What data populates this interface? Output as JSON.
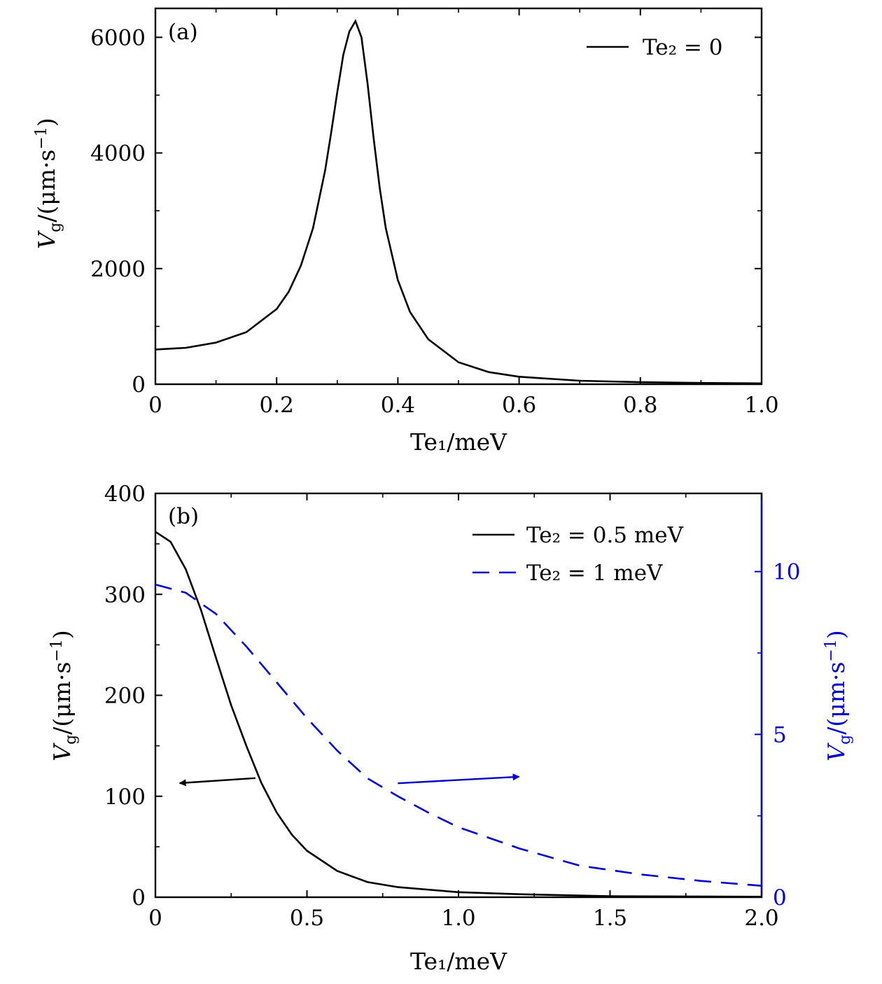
{
  "colors": {
    "black": "#000000",
    "blue": "#0000cc",
    "right_axis": "#0000cc"
  },
  "chart_data": [
    {
      "type": "line",
      "panel_label": "(a)",
      "xlabel": "Te₁/meV",
      "ylabel": "Vg/(μm·s⁻¹)",
      "ylabel_parts": {
        "var": "V",
        "sub": "g",
        "unit": "/(μm·s",
        "sup": "−1",
        "close": ")"
      },
      "xlim": [
        0,
        1.0
      ],
      "ylim": [
        0,
        6500
      ],
      "xticks": [
        0,
        0.2,
        0.4,
        0.6,
        0.8,
        1.0
      ],
      "xtick_labels": [
        "0",
        "0.2",
        "0.4",
        "0.6",
        "0.8",
        "1.0"
      ],
      "yticks": [
        0,
        2000,
        4000,
        6000
      ],
      "ytick_labels": [
        "0",
        "2000",
        "4000",
        "6000"
      ],
      "legend_position": "top-right",
      "series": [
        {
          "name": "Te₂ = 0",
          "color": "#000000",
          "dash": "solid",
          "x": [
            0,
            0.05,
            0.1,
            0.15,
            0.2,
            0.22,
            0.24,
            0.26,
            0.28,
            0.29,
            0.3,
            0.31,
            0.32,
            0.33,
            0.34,
            0.35,
            0.36,
            0.37,
            0.38,
            0.4,
            0.42,
            0.45,
            0.5,
            0.55,
            0.6,
            0.7,
            0.8,
            0.9,
            1.0
          ],
          "y": [
            600,
            630,
            720,
            900,
            1300,
            1600,
            2050,
            2700,
            3700,
            4350,
            5050,
            5700,
            6100,
            6280,
            6000,
            5200,
            4250,
            3400,
            2700,
            1800,
            1250,
            780,
            380,
            210,
            130,
            60,
            35,
            22,
            15
          ]
        }
      ]
    },
    {
      "type": "line",
      "panel_label": "(b)",
      "xlabel": "Te₁/meV",
      "ylabel": "Vg/(μm·s⁻¹)",
      "ylabel_parts": {
        "var": "V",
        "sub": "g",
        "unit": "/(μm·s",
        "sup": "−1",
        "close": ")"
      },
      "y2label": "Vg/(μm·s⁻¹)",
      "xlim": [
        0,
        2.0
      ],
      "ylim": [
        0,
        400
      ],
      "y2lim": [
        0,
        12.4
      ],
      "xticks": [
        0,
        0.5,
        1.0,
        1.5,
        2.0
      ],
      "xtick_labels": [
        "0",
        "0.5",
        "1.0",
        "1.5",
        "2.0"
      ],
      "yticks": [
        0,
        100,
        200,
        300,
        400
      ],
      "ytick_labels": [
        "0",
        "100",
        "200",
        "300",
        "400"
      ],
      "y2ticks": [
        0,
        5,
        10
      ],
      "y2tick_labels": [
        "0",
        "5",
        "10"
      ],
      "legend_position": "top-right",
      "series": [
        {
          "name": "Te₂ = 0.5 meV",
          "axis": "left",
          "color": "#000000",
          "dash": "solid",
          "x": [
            0,
            0.05,
            0.1,
            0.15,
            0.2,
            0.25,
            0.3,
            0.35,
            0.4,
            0.45,
            0.5,
            0.6,
            0.7,
            0.8,
            1.0,
            1.2,
            1.5,
            2.0
          ],
          "y": [
            362,
            352,
            325,
            285,
            237,
            190,
            150,
            113,
            84,
            62,
            46,
            26,
            15,
            10,
            5,
            3,
            1,
            0.5
          ]
        },
        {
          "name": "Te₂ = 1 meV",
          "axis": "right",
          "color": "#0000cc",
          "dash": "dashed",
          "x": [
            0,
            0.1,
            0.2,
            0.3,
            0.4,
            0.5,
            0.6,
            0.7,
            0.8,
            0.9,
            1.0,
            1.2,
            1.4,
            1.6,
            1.8,
            2.0
          ],
          "y": [
            9.6,
            9.35,
            8.7,
            7.7,
            6.6,
            5.5,
            4.5,
            3.65,
            3.1,
            2.6,
            2.15,
            1.5,
            0.97,
            0.7,
            0.5,
            0.35
          ]
        }
      ],
      "annotations": [
        {
          "type": "arrow",
          "axis": "left",
          "from": [
            0.33,
            118
          ],
          "to": [
            0.08,
            113
          ],
          "color": "#000000"
        },
        {
          "type": "arrow",
          "axis": "right",
          "from": [
            0.8,
            3.5
          ],
          "to": [
            1.2,
            3.7
          ],
          "color": "#0000cc"
        }
      ]
    }
  ]
}
